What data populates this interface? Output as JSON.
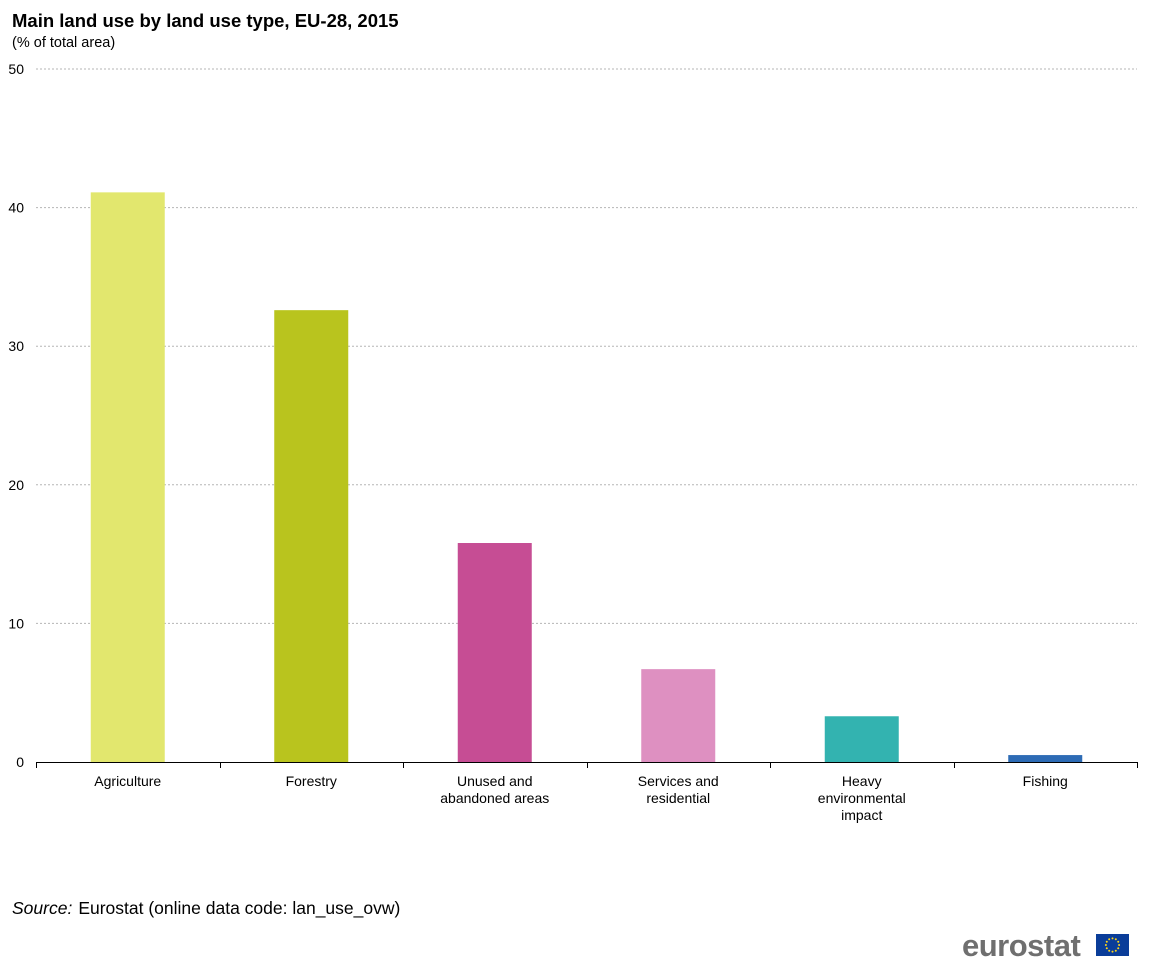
{
  "chart_data": {
    "type": "bar",
    "title": "Main land use by land use type, EU-28, 2015",
    "subtitle": "(% of total area)",
    "categories": [
      [
        "Agriculture"
      ],
      [
        "Forestry"
      ],
      [
        "Unused and",
        "abandoned areas"
      ],
      [
        "Services and",
        "residential"
      ],
      [
        "Heavy",
        "environmental",
        "impact"
      ],
      [
        "Fishing"
      ]
    ],
    "values": [
      41.1,
      32.6,
      15.8,
      6.7,
      3.3,
      0.5
    ],
    "colors": [
      "#e2e76e",
      "#b9c41e",
      "#c64d94",
      "#de90c1",
      "#33b3b0",
      "#2d6bb5"
    ],
    "ylim": [
      0,
      50
    ],
    "yticks": [
      0,
      10,
      20,
      30,
      40,
      50
    ],
    "grid": true,
    "grid_style": "dashed",
    "legend": "none"
  },
  "source": {
    "label": "Source:",
    "text": "Eurostat (online data code: lan_use_ovw)"
  },
  "logo": {
    "text": "eurostat",
    "icon": "eu-flag-icon"
  }
}
